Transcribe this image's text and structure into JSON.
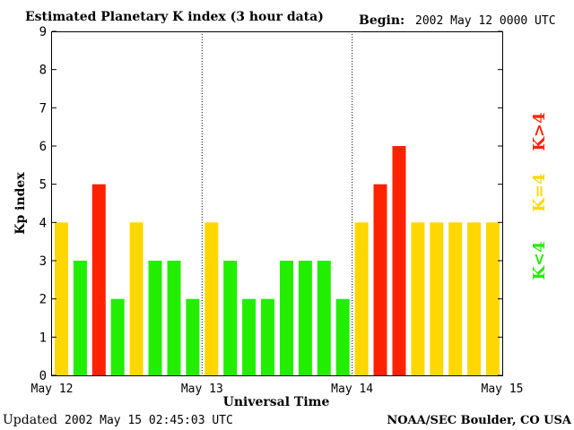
{
  "chart_data": {
    "type": "bar",
    "title": "Estimated Planetary K index (3 hour data)",
    "begin_label": "Begin:",
    "begin_value": "2002 May 12 0000 UTC",
    "ylabel": "Kp index",
    "xlabel": "Universal Time",
    "ylim": [
      0,
      9
    ],
    "yticks": [
      "0",
      "1",
      "2",
      "3",
      "4",
      "5",
      "6",
      "7",
      "8",
      "9"
    ],
    "xticks": [
      "May 12",
      "May 13",
      "May 14",
      "May 15"
    ],
    "values": [
      4,
      3,
      5,
      2,
      4,
      3,
      3,
      2,
      4,
      3,
      2,
      2,
      3,
      3,
      3,
      2,
      4,
      5,
      6,
      4,
      4,
      4,
      4,
      4
    ],
    "grid": "dotted vertical lines at day boundaries",
    "legend": [
      {
        "label": "K<4",
        "color": "#22ee00"
      },
      {
        "label": "K=4",
        "color": "#ffd700"
      },
      {
        "label": "K>4",
        "color": "#ff2200"
      }
    ],
    "colors": {
      "below": "#22ee00",
      "equal": "#ffd700",
      "above": "#ff2200"
    }
  },
  "footer": {
    "updated_label": "Updated",
    "updated_value": "2002 May 15 02:45:03 UTC",
    "source": "NOAA/SEC Boulder, CO USA"
  }
}
